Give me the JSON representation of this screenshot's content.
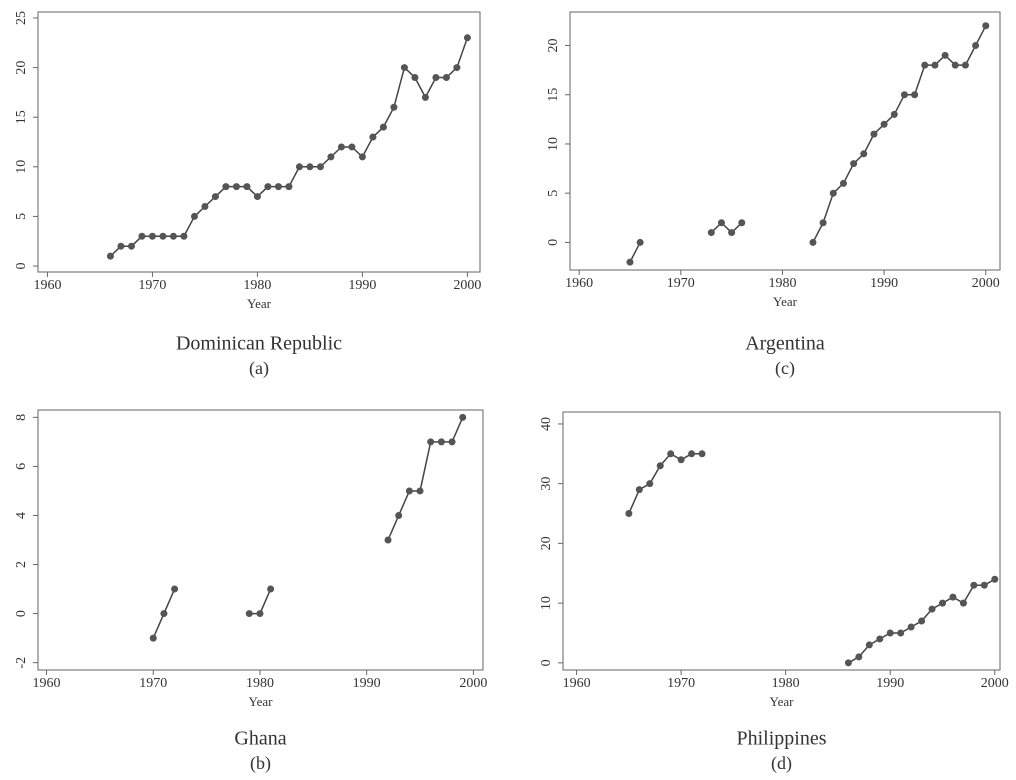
{
  "chart_data": [
    {
      "type": "line",
      "title": "Dominican Republic",
      "subtitle": "(a)",
      "x_label": "Year",
      "color": "#444444",
      "x": [
        1966,
        1967,
        1968,
        1969,
        1970,
        1971,
        1972,
        1973,
        1974,
        1975,
        1976,
        1977,
        1978,
        1979,
        1980,
        1981,
        1982,
        1983,
        1984,
        1985,
        1986,
        1987,
        1988,
        1989,
        1990,
        1991,
        1992,
        1993,
        1994,
        1995,
        1996,
        1997,
        1998,
        1999,
        2000
      ],
      "values": [
        1,
        2,
        2,
        3,
        3,
        3,
        3,
        3,
        5,
        6,
        7,
        8,
        8,
        8,
        7,
        8,
        8,
        8,
        10,
        10,
        10,
        11,
        12,
        12,
        11,
        13,
        14,
        16,
        20,
        19,
        17,
        19,
        19,
        20,
        23
      ],
      "xlim": [
        1959.1,
        2001.2
      ],
      "ylim": [
        -0.6,
        25.6
      ],
      "xticks": [
        1960,
        1970,
        1980,
        1990,
        2000
      ],
      "yticks": [
        0,
        5,
        10,
        15,
        20,
        25
      ]
    },
    {
      "type": "line",
      "title": "Argentina",
      "subtitle": "(c)",
      "x_label": "Year",
      "color": "#444444",
      "x": [
        1965,
        1966,
        1967,
        1968,
        1969,
        1970,
        1971,
        1972,
        1973,
        1974,
        1975,
        1976,
        1977,
        1978,
        1979,
        1980,
        1981,
        1982,
        1983,
        1984,
        1985,
        1986,
        1987,
        1988,
        1989,
        1990,
        1991,
        1992,
        1993,
        1994,
        1995,
        1996,
        1997,
        1998,
        1999,
        2000
      ],
      "values": [
        -2,
        0,
        null,
        null,
        null,
        null,
        null,
        null,
        1,
        2,
        1,
        2,
        null,
        null,
        null,
        null,
        null,
        null,
        0,
        2,
        5,
        6,
        8,
        9,
        11,
        12,
        13,
        15,
        15,
        18,
        18,
        19,
        18,
        18,
        20,
        22
      ],
      "xlim": [
        1959.1,
        2001.4
      ],
      "ylim": [
        -2.8,
        23.4
      ],
      "xticks": [
        1960,
        1970,
        1980,
        1990,
        2000
      ],
      "yticks": [
        0,
        5,
        10,
        15,
        20
      ]
    },
    {
      "type": "line",
      "title": "Ghana",
      "subtitle": "(b)",
      "x_label": "Year",
      "color": "#444444",
      "x": [
        1970,
        1971,
        1972,
        1973,
        1974,
        1975,
        1976,
        1977,
        1978,
        1979,
        1980,
        1981,
        1982,
        1983,
        1984,
        1985,
        1986,
        1987,
        1988,
        1989,
        1990,
        1991,
        1992,
        1993,
        1994,
        1995,
        1996,
        1997,
        1998,
        1999
      ],
      "values": [
        -1,
        0,
        1,
        null,
        null,
        null,
        null,
        null,
        null,
        0,
        0,
        1,
        null,
        null,
        null,
        null,
        null,
        null,
        null,
        null,
        null,
        null,
        3,
        4,
        5,
        5,
        7,
        7,
        7,
        8
      ],
      "xlim": [
        1959.2,
        2000.9
      ],
      "ylim": [
        -2.3,
        8.3
      ],
      "xticks": [
        1960,
        1970,
        1980,
        1990,
        2000
      ],
      "yticks": [
        -2,
        0,
        2,
        4,
        6,
        8
      ]
    },
    {
      "type": "line",
      "title": "Philippines",
      "subtitle": "(d)",
      "x_label": "Year",
      "color": "#444444",
      "x": [
        1965,
        1966,
        1967,
        1968,
        1969,
        1970,
        1971,
        1972,
        1973,
        1974,
        1975,
        1976,
        1977,
        1978,
        1979,
        1980,
        1981,
        1982,
        1983,
        1984,
        1985,
        1986,
        1987,
        1988,
        1989,
        1990,
        1991,
        1992,
        1993,
        1994,
        1995,
        1996,
        1997,
        1998,
        1999,
        2000
      ],
      "values": [
        25,
        29,
        30,
        33,
        35,
        34,
        35,
        35,
        null,
        null,
        null,
        null,
        null,
        null,
        null,
        null,
        null,
        null,
        null,
        null,
        null,
        0,
        1,
        3,
        4,
        5,
        5,
        6,
        7,
        9,
        10,
        11,
        10,
        13,
        13,
        14
      ],
      "xlim": [
        1958.7,
        2000.5
      ],
      "ylim": [
        -1.2,
        42
      ],
      "xticks": [
        1960,
        1970,
        1980,
        1990,
        2000
      ],
      "yticks": [
        0,
        10,
        20,
        30,
        40
      ]
    }
  ]
}
